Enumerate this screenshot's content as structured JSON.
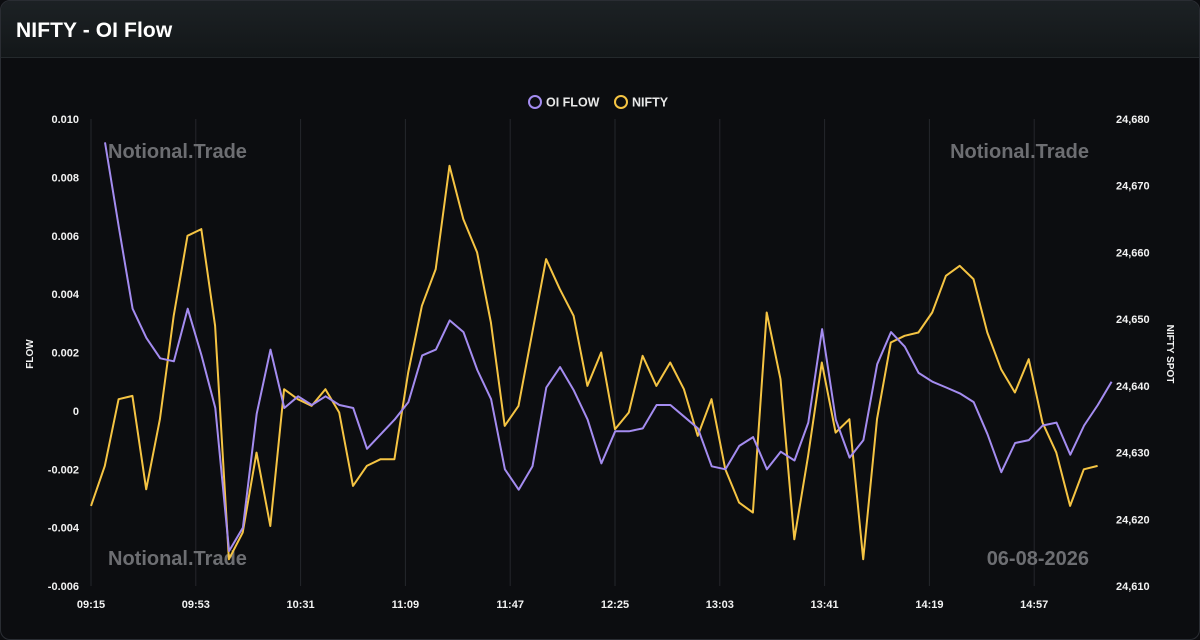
{
  "window": {
    "title": "NIFTY - OI Flow"
  },
  "watermarks": {
    "top_left": "Notional.Trade",
    "top_right": "Notional.Trade",
    "bottom_left": "Notional.Trade",
    "bottom_right": "06-08-2026"
  },
  "chart_data": {
    "type": "line",
    "title": "",
    "xlabel": "",
    "x_tick_labels": [
      "09:15",
      "09:53",
      "10:31",
      "11:09",
      "11:47",
      "12:25",
      "13:03",
      "13:41",
      "14:19",
      "14:57"
    ],
    "y_left": {
      "label": "FLOW",
      "range": [
        -0.006,
        0.01
      ],
      "tick_labels": [
        "0.010",
        "0.008",
        "0.006",
        "0.004",
        "0.002",
        "0",
        "-0.002",
        "-0.004",
        "-0.006"
      ]
    },
    "y_right": {
      "label": "NIFTY SPOT",
      "range": [
        24610,
        24680
      ],
      "tick_labels": [
        "24,680",
        "24,670",
        "24,660",
        "24,650",
        "24,640",
        "24,630",
        "24,620",
        "24,610"
      ]
    },
    "legend_position": "top-center",
    "grid": "vertical",
    "series": [
      {
        "name": "OI FLOW",
        "axis": "left",
        "color": "#a48cf0",
        "values": [
          0.0092,
          0.0063,
          0.0035,
          0.0025,
          0.0018,
          0.0017,
          0.0035,
          0.0019,
          0.0001,
          -0.0048,
          -0.004,
          -0.0001,
          0.0021,
          0.0001,
          0.0005,
          0.0002,
          0.0005,
          0.0002,
          0.0001,
          -0.0013,
          -0.0008,
          -0.0003,
          0.0003,
          0.0019,
          0.0021,
          0.0031,
          0.0027,
          0.0014,
          0.0004,
          -0.002,
          -0.0027,
          -0.0019,
          0.0008,
          0.0015,
          0.0007,
          -0.0003,
          -0.0018,
          -0.0007,
          -0.0007,
          -0.0006,
          0.0002,
          0.0002,
          -0.0002,
          -0.0006,
          -0.0019,
          -0.002,
          -0.0012,
          -0.0009,
          -0.002,
          -0.0014,
          -0.0017,
          -0.0004,
          0.0028,
          -0.0003,
          -0.0016,
          -0.001,
          0.0016,
          0.0027,
          0.0022,
          0.0013,
          0.001,
          0.0008,
          0.0006,
          0.0003,
          -0.0008,
          -0.0021,
          -0.0011,
          -0.001,
          -0.0005,
          -0.0004,
          -0.0015,
          -0.0005,
          0.0002,
          0.001
        ]
      },
      {
        "name": "NIFTY",
        "axis": "right",
        "color": "#f5c443",
        "values": [
          24622,
          24628,
          24638,
          24638.5,
          24624.5,
          24635,
          24650.5,
          24662.5,
          24663.5,
          24649,
          24614,
          24618,
          24630,
          24619,
          24639.5,
          24638,
          24637,
          24639.5,
          24636,
          24625,
          24628,
          24629,
          24629,
          24642,
          24652,
          24657.5,
          24673,
          24665,
          24660,
          24649.5,
          24634,
          24637,
          24648,
          24659,
          24654.5,
          24650.5,
          24640,
          24645,
          24633.5,
          24636,
          24644.5,
          24640,
          24643.5,
          24639.5,
          24632.5,
          24638,
          24627.5,
          24622.5,
          24621,
          24651,
          24641,
          24617,
          24629.5,
          24643.5,
          24633,
          24635,
          24614,
          24635,
          24646.5,
          24647.5,
          24648,
          24651,
          24656.5,
          24658,
          24656,
          24648,
          24642.5,
          24639,
          24644,
          24634.5,
          24630,
          24622,
          24627.5,
          24628
        ]
      }
    ]
  }
}
